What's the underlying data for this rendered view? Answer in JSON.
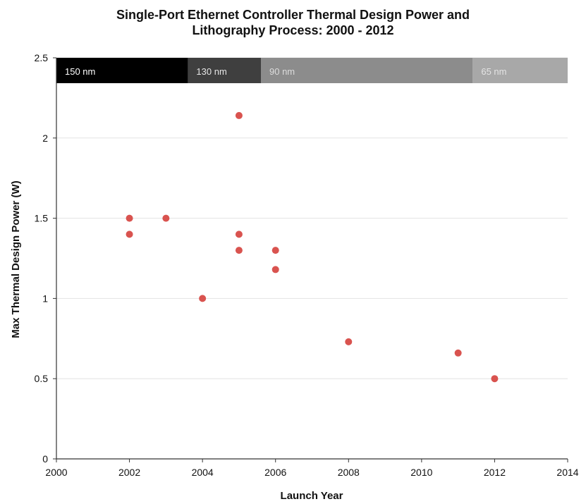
{
  "chart_data": {
    "type": "scatter",
    "title_line1": "Single-Port Ethernet Controller Thermal Design Power and",
    "title_line2": "Lithography Process: 2000 - 2012",
    "xlabel": "Launch Year",
    "ylabel": "Max Thermal Design Power  (W)",
    "xlim": [
      2000,
      2014
    ],
    "ylim": [
      0,
      2.5
    ],
    "x_ticks": [
      "2000",
      "2002",
      "2004",
      "2006",
      "2008",
      "2010",
      "2012",
      "2014"
    ],
    "y_ticks": [
      "0",
      "0.5",
      "1",
      "1.5",
      "2",
      "2.5"
    ],
    "grid": "horizontal",
    "marker_color": "#d9534f",
    "process_bands": [
      {
        "label": "150 nm",
        "start": 2000,
        "end": 2003.6,
        "color": "#000000",
        "text_color": "#ffffff"
      },
      {
        "label": "130 nm",
        "start": 2003.6,
        "end": 2005.6,
        "color": "#3f3f3f",
        "text_color": "#e6e6e6"
      },
      {
        "label": "90 nm",
        "start": 2005.6,
        "end": 2011.4,
        "color": "#8c8c8c",
        "text_color": "#dcdcdc"
      },
      {
        "label": "65 nm",
        "start": 2011.4,
        "end": 2014,
        "color": "#a8a8a8",
        "text_color": "#e4e4e4"
      }
    ],
    "points": [
      {
        "x": 2002,
        "y": 1.5
      },
      {
        "x": 2002,
        "y": 1.4
      },
      {
        "x": 2003,
        "y": 1.5
      },
      {
        "x": 2004,
        "y": 1.0
      },
      {
        "x": 2005,
        "y": 2.14
      },
      {
        "x": 2005,
        "y": 1.4
      },
      {
        "x": 2005,
        "y": 1.3
      },
      {
        "x": 2006,
        "y": 1.3
      },
      {
        "x": 2006,
        "y": 1.18
      },
      {
        "x": 2008,
        "y": 0.73
      },
      {
        "x": 2011,
        "y": 0.66
      },
      {
        "x": 2012,
        "y": 0.5
      }
    ]
  }
}
